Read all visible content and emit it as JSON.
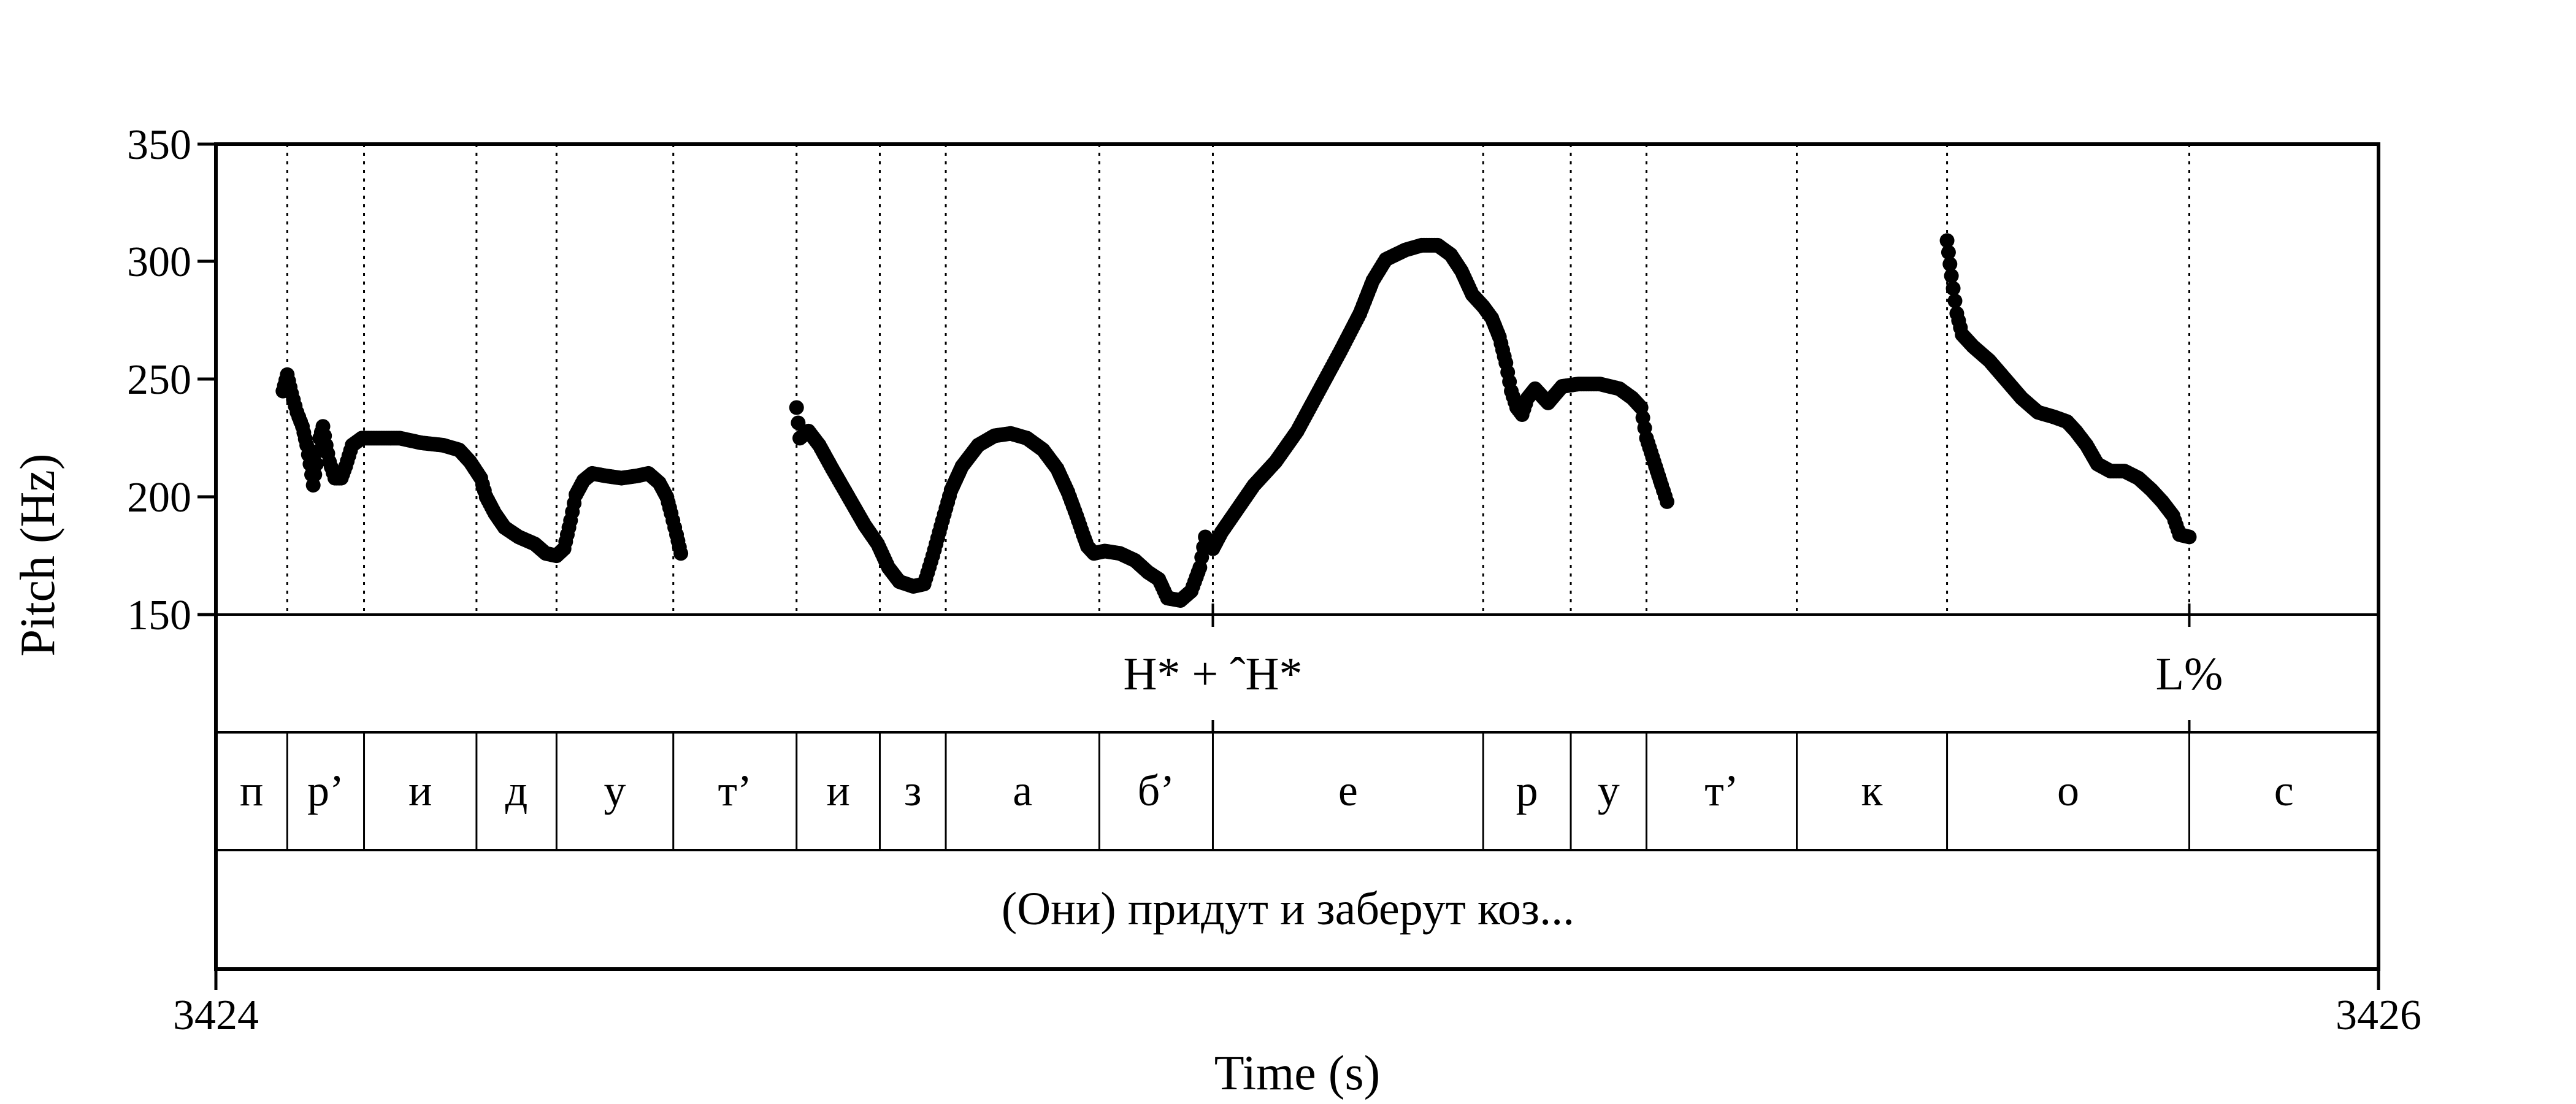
{
  "chart_data": {
    "type": "scatter",
    "title": "",
    "xlabel": "Time (s)",
    "ylabel": "Pitch (Hz)",
    "xlim": [
      3424,
      3426
    ],
    "ylim": [
      150,
      350
    ],
    "x_ticks": [
      "3424",
      "3426"
    ],
    "y_ticks": [
      "150",
      "200",
      "250",
      "300",
      "350"
    ],
    "grid": false,
    "legend": "none",
    "point_color": "#000000",
    "segment_boundaries": [
      3424.066,
      3424.137,
      3424.241,
      3424.315,
      3424.423,
      3424.537,
      3424.614,
      3424.675,
      3424.817,
      3424.922,
      3425.172,
      3425.253,
      3425.323,
      3425.462,
      3425.601,
      3425.825
    ],
    "pitch_contour": [
      [
        3424.062,
        245
      ],
      [
        3424.066,
        252
      ],
      [
        3424.07,
        244
      ],
      [
        3424.075,
        236
      ],
      [
        3424.08,
        230
      ],
      [
        3424.084,
        222
      ],
      [
        3424.087,
        214
      ],
      [
        3424.09,
        205
      ],
      [
        3424.093,
        214
      ],
      [
        3424.096,
        225
      ],
      [
        3424.099,
        230
      ],
      [
        3424.102,
        222
      ],
      [
        3424.105,
        215
      ],
      [
        3424.11,
        208
      ],
      [
        3424.116,
        208
      ],
      [
        3424.12,
        213
      ],
      [
        3424.126,
        222
      ],
      [
        3424.135,
        225
      ],
      [
        3424.15,
        225
      ],
      [
        3424.17,
        225
      ],
      [
        3424.19,
        223
      ],
      [
        3424.21,
        222
      ],
      [
        3424.225,
        220
      ],
      [
        3424.235,
        215
      ],
      [
        3424.245,
        208
      ],
      [
        3424.25,
        200
      ],
      [
        3424.258,
        193
      ],
      [
        3424.267,
        187
      ],
      [
        3424.28,
        183
      ],
      [
        3424.295,
        180
      ],
      [
        3424.305,
        176
      ],
      [
        3424.315,
        175
      ],
      [
        3424.322,
        178
      ],
      [
        3424.328,
        190
      ],
      [
        3424.333,
        201
      ],
      [
        3424.34,
        207
      ],
      [
        3424.348,
        210
      ],
      [
        3424.36,
        209
      ],
      [
        3424.375,
        208
      ],
      [
        3424.39,
        209
      ],
      [
        3424.4,
        210
      ],
      [
        3424.41,
        206
      ],
      [
        3424.417,
        200
      ],
      [
        3424.421,
        193
      ],
      [
        3424.426,
        184
      ],
      [
        3424.43,
        176
      ],
      [
        3424.537,
        238
      ],
      [
        3424.54,
        225
      ],
      [
        3424.548,
        228
      ],
      [
        3424.558,
        222
      ],
      [
        3424.57,
        212
      ],
      [
        3424.585,
        200
      ],
      [
        3424.6,
        188
      ],
      [
        3424.612,
        180
      ],
      [
        3424.622,
        170
      ],
      [
        3424.632,
        164
      ],
      [
        3424.645,
        162
      ],
      [
        3424.655,
        163
      ],
      [
        3424.663,
        175
      ],
      [
        3424.672,
        190
      ],
      [
        3424.68,
        203
      ],
      [
        3424.69,
        213
      ],
      [
        3424.705,
        222
      ],
      [
        3424.72,
        226
      ],
      [
        3424.735,
        227
      ],
      [
        3424.75,
        225
      ],
      [
        3424.765,
        220
      ],
      [
        3424.778,
        212
      ],
      [
        3424.788,
        202
      ],
      [
        3424.796,
        192
      ],
      [
        3424.802,
        184
      ],
      [
        3424.806,
        179
      ],
      [
        3424.812,
        176
      ],
      [
        3424.822,
        177
      ],
      [
        3424.836,
        176
      ],
      [
        3424.85,
        173
      ],
      [
        3424.862,
        168
      ],
      [
        3424.872,
        165
      ],
      [
        3424.88,
        157
      ],
      [
        3424.892,
        156
      ],
      [
        3424.902,
        160
      ],
      [
        3424.91,
        170
      ],
      [
        3424.915,
        183
      ],
      [
        3424.922,
        178
      ],
      [
        3424.93,
        185
      ],
      [
        3424.945,
        195
      ],
      [
        3424.96,
        205
      ],
      [
        3424.98,
        215
      ],
      [
        3425.0,
        228
      ],
      [
        3425.02,
        245
      ],
      [
        3425.04,
        262
      ],
      [
        3425.058,
        278
      ],
      [
        3425.07,
        292
      ],
      [
        3425.082,
        301
      ],
      [
        3425.1,
        305
      ],
      [
        3425.115,
        307
      ],
      [
        3425.13,
        307
      ],
      [
        3425.142,
        303
      ],
      [
        3425.152,
        296
      ],
      [
        3425.162,
        286
      ],
      [
        3425.172,
        281
      ],
      [
        3425.18,
        276
      ],
      [
        3425.187,
        268
      ],
      [
        3425.193,
        257
      ],
      [
        3425.198,
        245
      ],
      [
        3425.203,
        238
      ],
      [
        3425.208,
        235
      ],
      [
        3425.213,
        242
      ],
      [
        3425.22,
        246
      ],
      [
        3425.232,
        240
      ],
      [
        3425.245,
        247
      ],
      [
        3425.26,
        248
      ],
      [
        3425.28,
        248
      ],
      [
        3425.298,
        246
      ],
      [
        3425.31,
        242
      ],
      [
        3425.318,
        238
      ],
      [
        3425.323,
        225
      ],
      [
        3425.33,
        215
      ],
      [
        3425.337,
        205
      ],
      [
        3425.342,
        198
      ],
      [
        3425.601,
        309
      ],
      [
        3425.605,
        294
      ],
      [
        3425.61,
        278
      ],
      [
        3425.615,
        269
      ],
      [
        3425.625,
        264
      ],
      [
        3425.64,
        258
      ],
      [
        3425.655,
        250
      ],
      [
        3425.67,
        242
      ],
      [
        3425.685,
        236
      ],
      [
        3425.7,
        234
      ],
      [
        3425.712,
        232
      ],
      [
        3425.72,
        228
      ],
      [
        3425.73,
        222
      ],
      [
        3425.74,
        214
      ],
      [
        3425.752,
        211
      ],
      [
        3425.765,
        211
      ],
      [
        3425.778,
        208
      ],
      [
        3425.79,
        203
      ],
      [
        3425.8,
        198
      ],
      [
        3425.81,
        192
      ],
      [
        3425.816,
        184
      ],
      [
        3425.825,
        183
      ]
    ]
  },
  "tiers": {
    "tones": [
      {
        "label": "H* + ˆH*",
        "time": 3424.922
      },
      {
        "label": "L%",
        "time": 3425.825
      }
    ],
    "segments": [
      "п",
      "р’",
      "и",
      "д",
      "у",
      "т’",
      "и",
      "з",
      "а",
      "б’",
      "е",
      "р",
      "у",
      "т’",
      "к",
      "о",
      "с"
    ],
    "phrase": "(Они) придут и заберут коз..."
  }
}
